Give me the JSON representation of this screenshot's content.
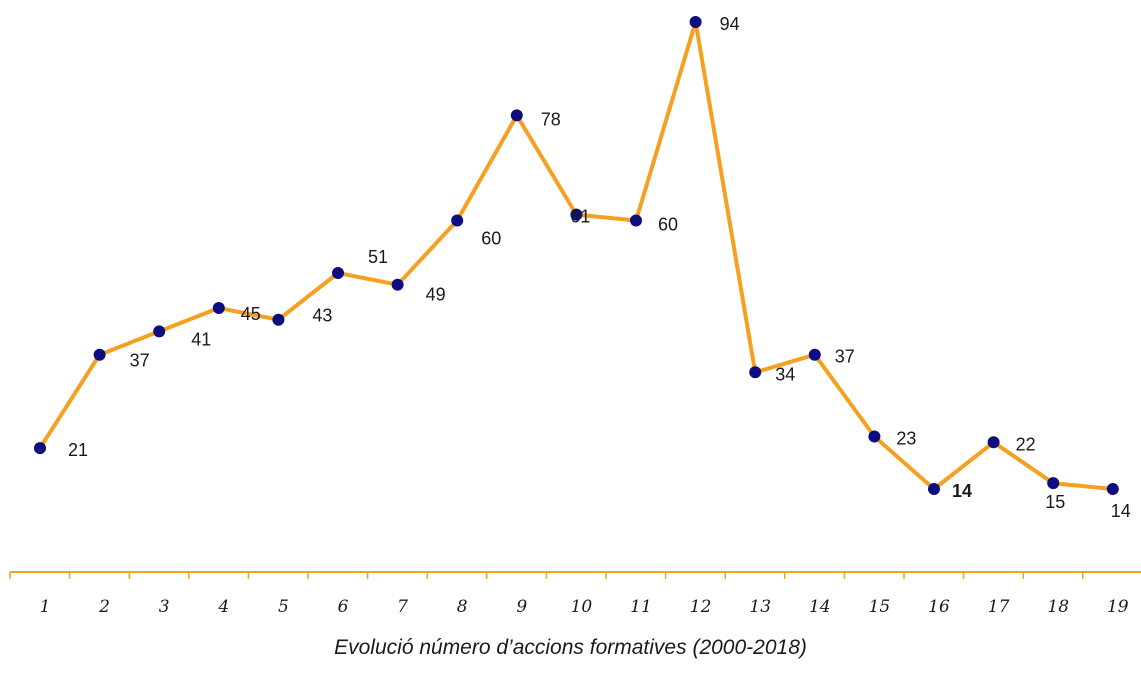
{
  "chart_data": {
    "type": "line",
    "title": "",
    "xlabel": "Evolució número d’accions formatives (2000-2018)",
    "ylabel": "",
    "x": [
      "1",
      "2",
      "3",
      "4",
      "5",
      "6",
      "7",
      "8",
      "9",
      "10",
      "11",
      "12",
      "13",
      "14",
      "15",
      "16",
      "17",
      "18",
      "19"
    ],
    "series": [
      {
        "values": [
          21,
          37,
          41,
          45,
          43,
          51,
          49,
          60,
          78,
          61,
          60,
          94,
          34,
          37,
          23,
          14,
          22,
          15,
          14
        ],
        "labels": [
          "21",
          "37",
          "41",
          "45",
          "43",
          "51",
          "49",
          "60",
          "78",
          "61",
          "60",
          "94",
          "34",
          "37",
          "23",
          "14",
          "22",
          "15",
          "14"
        ]
      }
    ],
    "ylim": [
      0,
      100
    ],
    "grid": false,
    "legend": "none",
    "colors": {
      "line": "#f5a020",
      "marker": "#0d0d80",
      "axis": "#f5a020",
      "highlight_label": "#e8202a",
      "text": "#1a1a1a"
    }
  }
}
